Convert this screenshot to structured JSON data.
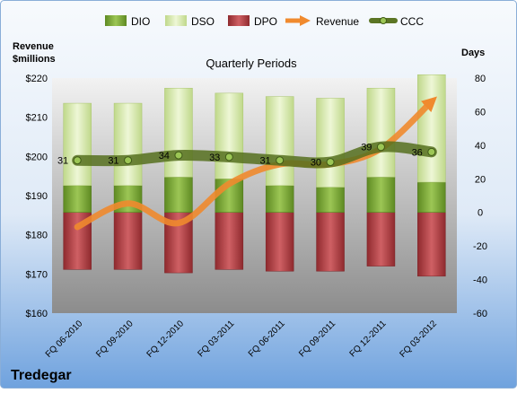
{
  "chart_data": {
    "type": "bar",
    "title": "Quarterly Periods",
    "company": "Tredegar",
    "left_axis": {
      "label_line1": "Revenue",
      "label_line2": "$millions",
      "ylim": [
        160,
        220
      ],
      "ticks": [
        "$220",
        "$210",
        "$200",
        "$190",
        "$180",
        "$170",
        "$160"
      ]
    },
    "right_axis": {
      "label": "Days",
      "ylim": [
        -60,
        80
      ],
      "ticks": [
        "80",
        "60",
        "40",
        "20",
        "0",
        "-20",
        "-40",
        "-60"
      ]
    },
    "categories": [
      "FQ 06-2010",
      "FQ 09-2010",
      "FQ 12-2010",
      "FQ 03-2011",
      "FQ 06-2011",
      "FQ 09-2011",
      "FQ 12-2011",
      "FQ 03-2012"
    ],
    "legend": [
      "DIO",
      "DSO",
      "DPO",
      "Revenue",
      "CCC"
    ],
    "legend_position": "top",
    "series": [
      {
        "name": "DIO",
        "axis": "right",
        "stacked": true,
        "values": [
          16,
          16,
          21,
          20,
          16,
          15,
          21,
          18
        ]
      },
      {
        "name": "DSO",
        "axis": "right",
        "stacked": true,
        "values": [
          49,
          49,
          53,
          51,
          53,
          53,
          53,
          64
        ]
      },
      {
        "name": "DPO",
        "axis": "right",
        "stacked": true,
        "values": [
          -34,
          -34,
          -36,
          -34,
          -35,
          -35,
          -32,
          -38
        ]
      },
      {
        "name": "Revenue",
        "axis": "left",
        "values": [
          182,
          188,
          183,
          193,
          198,
          198,
          202,
          214
        ]
      },
      {
        "name": "CCC",
        "axis": "right",
        "values": [
          31,
          31,
          34,
          33,
          31,
          30,
          39,
          36
        ],
        "labels": [
          "31",
          "31",
          "34",
          "33",
          "31",
          "30",
          "39",
          "36"
        ]
      }
    ],
    "colors": {
      "DIO": "#7aa83a",
      "DSO": "#d8eca6",
      "DPO": "#b84448",
      "Revenue": "#f08a2e",
      "CCC": "#5b7524",
      "plot_bg_top": "#f2f2f2",
      "plot_bg_bottom": "#8c8c8c",
      "frame_top": "#dde9f6",
      "frame_bottom": "#6fa2de"
    },
    "grid": false
  }
}
